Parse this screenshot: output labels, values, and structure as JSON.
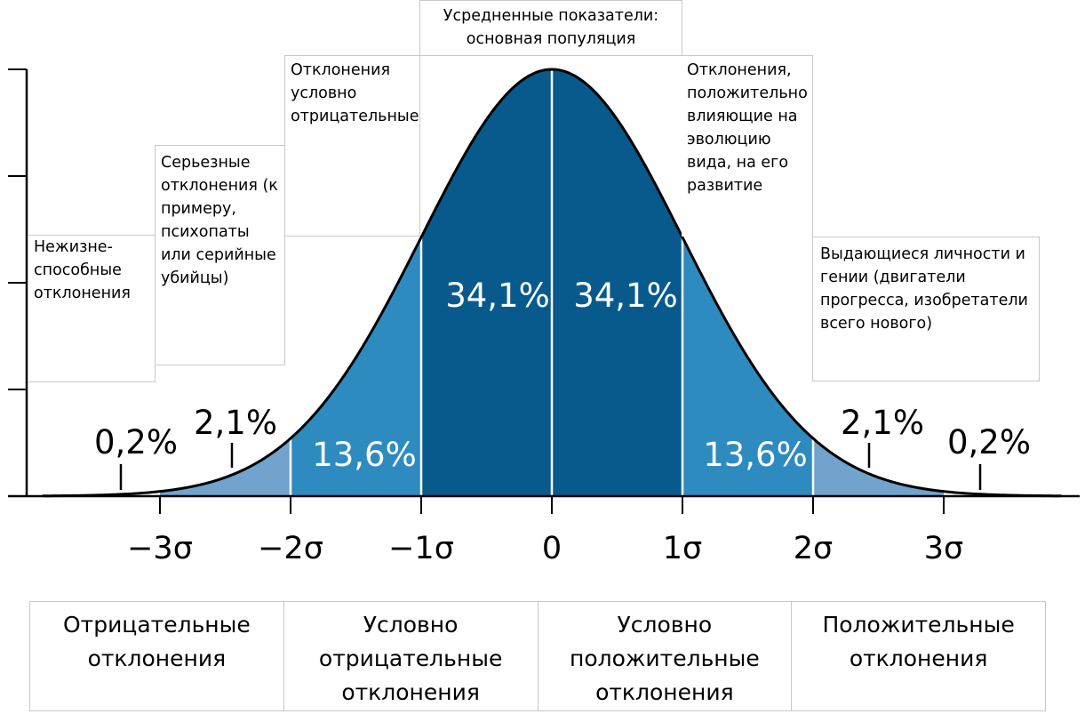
{
  "chart_data": {
    "type": "area",
    "title": "",
    "xlabel": "",
    "ylabel": "",
    "distribution": "normal",
    "mean": 0,
    "sd": 1,
    "xlim": [
      -3.95,
      3.95
    ],
    "x_ticks": [
      -3,
      -2,
      -1,
      0,
      1,
      2,
      3
    ],
    "x_tick_labels": [
      "−3σ",
      "−2σ",
      "−1σ",
      "0",
      "1σ",
      "2σ",
      "3σ"
    ],
    "y_ticks_count": 4,
    "regions": [
      {
        "from": -3,
        "to": -2,
        "percent": "2,1%",
        "color": "#71a3cc",
        "label_color": "#000000"
      },
      {
        "from": -2,
        "to": -1,
        "percent": "13,6%",
        "color": "#2e8bc0",
        "label_color": "#ffffff"
      },
      {
        "from": -1,
        "to": 0,
        "percent": "34,1%",
        "color": "#085a8c",
        "label_color": "#ffffff"
      },
      {
        "from": 0,
        "to": 1,
        "percent": "34,1%",
        "color": "#085a8c",
        "label_color": "#ffffff"
      },
      {
        "from": 1,
        "to": 2,
        "percent": "13,6%",
        "color": "#2e8bc0",
        "label_color": "#ffffff"
      },
      {
        "from": 2,
        "to": 3,
        "percent": "2,1%",
        "color": "#71a3cc",
        "label_color": "#000000"
      }
    ],
    "tails": [
      {
        "side": "left",
        "percent": "0,2%"
      },
      {
        "side": "right",
        "percent": "0,2%"
      }
    ]
  },
  "annotations": {
    "nonviable": "Нежизне-\nспособные\nотклонения",
    "serious": "Серьезные\nотклонения (к\nпримеру,\nпсихопаты\nили серийные\nубийцы)",
    "cond_negative": "Отклонения\nусловно\nотрицательные",
    "average": "Усредненные показатели:\nосновная популяция",
    "positive_evolution": "Отклонения,\nположительно\nвлияющие на\nэволюцию\nвида, на его\nразвитие",
    "geniuses": "Выдающиеся личности и\nгении (двигатели\nпрогресса, изобретатели\nвсего нового)"
  },
  "bottom_categories": [
    "Отрицательные\nотклонения",
    "Условно\nотрицательные\nотклонения",
    "Условно\nположительные\nотклонения",
    "Положительные\nотклонения"
  ]
}
